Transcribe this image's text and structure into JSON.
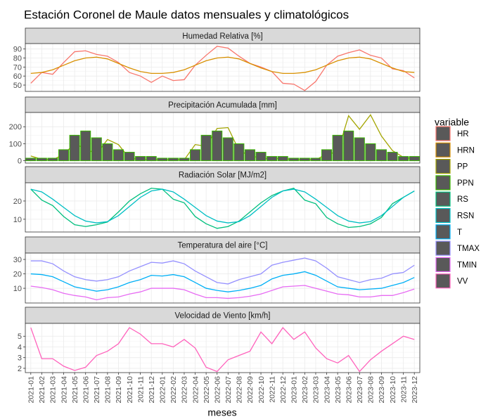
{
  "chart_data": {
    "type": "facet",
    "title": "Estación Coronel de Maule datos mensuales y climatológicos",
    "x_label": "meses",
    "legend_title": "variable",
    "categories": [
      "2021-01",
      "2021-02",
      "2021-03",
      "2021-04",
      "2021-05",
      "2021-06",
      "2021-07",
      "2021-08",
      "2021-09",
      "2021-10",
      "2021-11",
      "2021-12",
      "2022-01",
      "2022-02",
      "2022-03",
      "2022-04",
      "2022-05",
      "2022-06",
      "2022-07",
      "2022-08",
      "2022-09",
      "2022-10",
      "2022-11",
      "2022-12",
      "2023-01",
      "2023-02",
      "2023-03",
      "2023-04",
      "2023-05",
      "2023-06",
      "2023-07",
      "2023-08",
      "2023-09",
      "2023-10",
      "2023-11",
      "2023-12"
    ],
    "panels": [
      {
        "type": "line",
        "title": "Humedad Relativa [%]",
        "ylim": [
          43,
          96
        ],
        "yticks": [
          50,
          60,
          70,
          80,
          90
        ],
        "grid": true,
        "series": [
          {
            "name": "HR",
            "color": "#F8766D",
            "values": [
              52,
              64,
              62,
              75,
              87,
              88,
              84,
              82,
              75,
              64,
              60,
              53,
              60,
              55,
              56,
              72,
              83,
              93,
              91,
              82,
              74,
              70,
              65,
              52,
              51,
              44,
              54,
              72,
              82,
              86,
              89,
              83,
              80,
              68,
              66,
              58
            ]
          },
          {
            "name": "HRN",
            "color": "#D89000",
            "values": [
              63,
              64,
              67,
              72,
              77,
              80,
              81,
              79,
              74,
              69,
              65,
              63,
              63,
              64,
              67,
              72,
              77,
              80,
              81,
              79,
              74,
              69,
              65,
              63,
              63,
              64,
              67,
              72,
              77,
              80,
              81,
              79,
              74,
              69,
              65,
              64
            ]
          }
        ]
      },
      {
        "type": "line",
        "title": "Precipitación Acumulada [mm]",
        "ylim": [
          -14,
          284
        ],
        "yticks": [
          0,
          100,
          200
        ],
        "grid": true,
        "series": [
          {
            "name": "PP",
            "color": "#A3A500",
            "values": [
              28,
              8,
              5,
              38,
              100,
              70,
              40,
              125,
              95,
              15,
              8,
              5,
              5,
              5,
              5,
              95,
              85,
              190,
              195,
              60,
              30,
              15,
              10,
              15,
              5,
              5,
              5,
              40,
              50,
              265,
              185,
              270,
              145,
              60,
              20,
              10
            ]
          },
          {
            "name": "PPN",
            "color": "#39B600",
            "type": "bar",
            "values": [
              15,
              15,
              15,
              65,
              150,
              175,
              135,
              100,
              65,
              50,
              25,
              25,
              15,
              15,
              15,
              65,
              150,
              175,
              135,
              100,
              65,
              50,
              25,
              25,
              15,
              15,
              15,
              65,
              150,
              175,
              135,
              100,
              65,
              50,
              25,
              25
            ]
          }
        ]
      },
      {
        "type": "line",
        "title": "Radiación Solar [MJ/m2]",
        "ylim": [
          3,
          30
        ],
        "yticks": [
          10,
          20
        ],
        "grid": true,
        "series": [
          {
            "name": "RS",
            "color": "#00BF7D",
            "values": [
              26.5,
              20.5,
              17.5,
              11.5,
              7,
              6,
              7,
              8.5,
              14,
              20,
              24,
              27,
              26.5,
              21,
              19,
              11.5,
              7.5,
              5,
              6,
              9,
              14,
              19,
              23,
              25.5,
              27,
              20.5,
              18.5,
              11,
              7.5,
              5.5,
              6,
              7.5,
              11,
              18.5,
              22,
              25.5
            ]
          },
          {
            "name": "RSN",
            "color": "#00BFC4",
            "values": [
              26.5,
              25,
              21,
              16.5,
              12,
              9,
              8,
              8.7,
              12,
              17,
              22,
              25.5,
              26.5,
              25,
              21,
              16.5,
              12,
              9,
              8,
              8.7,
              12,
              17,
              22,
              25.5,
              26.5,
              25,
              21,
              16.5,
              12,
              9,
              8,
              8.7,
              12,
              17,
              22,
              25.5
            ]
          }
        ]
      },
      {
        "type": "line",
        "title": "Temperatura del aire [°C]",
        "ylim": [
          -0.2,
          34.4
        ],
        "yticks": [
          10,
          20,
          30
        ],
        "grid": true,
        "series": [
          {
            "name": "T",
            "color": "#00B0F6",
            "values": [
              20,
              19.5,
              18,
              14.5,
              11,
              9.5,
              8,
              9,
              11,
              14,
              16,
              19,
              18.5,
              19.5,
              18,
              14,
              10,
              8.5,
              7.5,
              8.5,
              10,
              12,
              16.5,
              19,
              20,
              21.5,
              19,
              15,
              11,
              10,
              9,
              9.5,
              10,
              12,
              14,
              17.5
            ]
          },
          {
            "name": "TMAX",
            "color": "#9590FF",
            "values": [
              29,
              29,
              27,
              22,
              18,
              16,
              15,
              16,
              18,
              22,
              25,
              28,
              27.5,
              29,
              27,
              22,
              18,
              14,
              13,
              16,
              18,
              20,
              26,
              28,
              29.5,
              31,
              29,
              24,
              18,
              16,
              14,
              16,
              17,
              20,
              21,
              26
            ]
          },
          {
            "name": "TMIN",
            "color": "#E76BF3",
            "values": [
              11.5,
              10.5,
              9,
              6.5,
              5,
              4,
              2,
              3.5,
              4,
              6,
              7.5,
              10,
              10,
              10,
              9,
              6,
              3.5,
              3.5,
              3,
              3.5,
              4.5,
              6,
              8.5,
              11,
              11.5,
              12,
              10,
              8,
              6,
              5.5,
              4,
              4,
              5,
              5,
              7,
              9.5
            ]
          }
        ]
      },
      {
        "type": "line",
        "title": "Velocidad de Viento [km/h]",
        "ylim": [
          1.6,
          6.2
        ],
        "yticks": [
          2,
          3,
          4,
          5
        ],
        "grid": true,
        "series": [
          {
            "name": "VV",
            "color": "#FF62BC",
            "values": [
              5.8,
              2.9,
              2.9,
              2.2,
              1.8,
              2.1,
              3.2,
              3.6,
              4.3,
              5.8,
              5.2,
              4.3,
              4.3,
              4.0,
              4.7,
              3.9,
              2.1,
              1.7,
              2.8,
              3.2,
              3.6,
              5.4,
              4.3,
              5.8,
              4.7,
              5.4,
              3.9,
              2.9,
              2.5,
              3.2,
              1.7,
              2.8,
              3.6,
              4.3,
              5.0,
              4.7
            ]
          }
        ]
      }
    ]
  }
}
